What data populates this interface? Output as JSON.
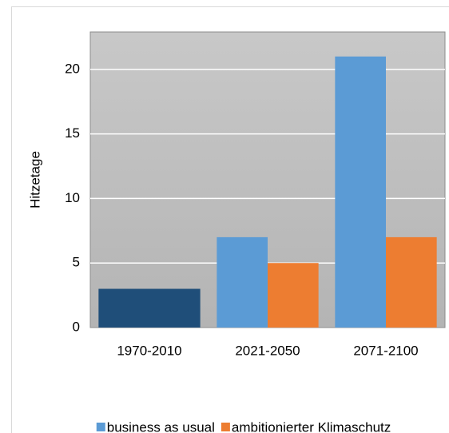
{
  "chart_data": {
    "type": "bar",
    "categories": [
      "1970-2010",
      "2021-2050",
      "2071-2100"
    ],
    "baseline": {
      "values": [
        3,
        null,
        null
      ],
      "color": "#1f4e79"
    },
    "series": [
      {
        "name": "business as usual",
        "color": "#5b9bd5",
        "values": [
          null,
          7,
          21
        ]
      },
      {
        "name": "ambitionierter Klimaschutz",
        "color": "#ed7d31",
        "values": [
          null,
          5,
          7
        ]
      }
    ],
    "y_label": "Hitzetage",
    "ylim": [
      0,
      22.9
    ],
    "yticks": [
      0,
      5,
      10,
      15,
      20
    ],
    "grid": true,
    "legend": "bottom"
  }
}
